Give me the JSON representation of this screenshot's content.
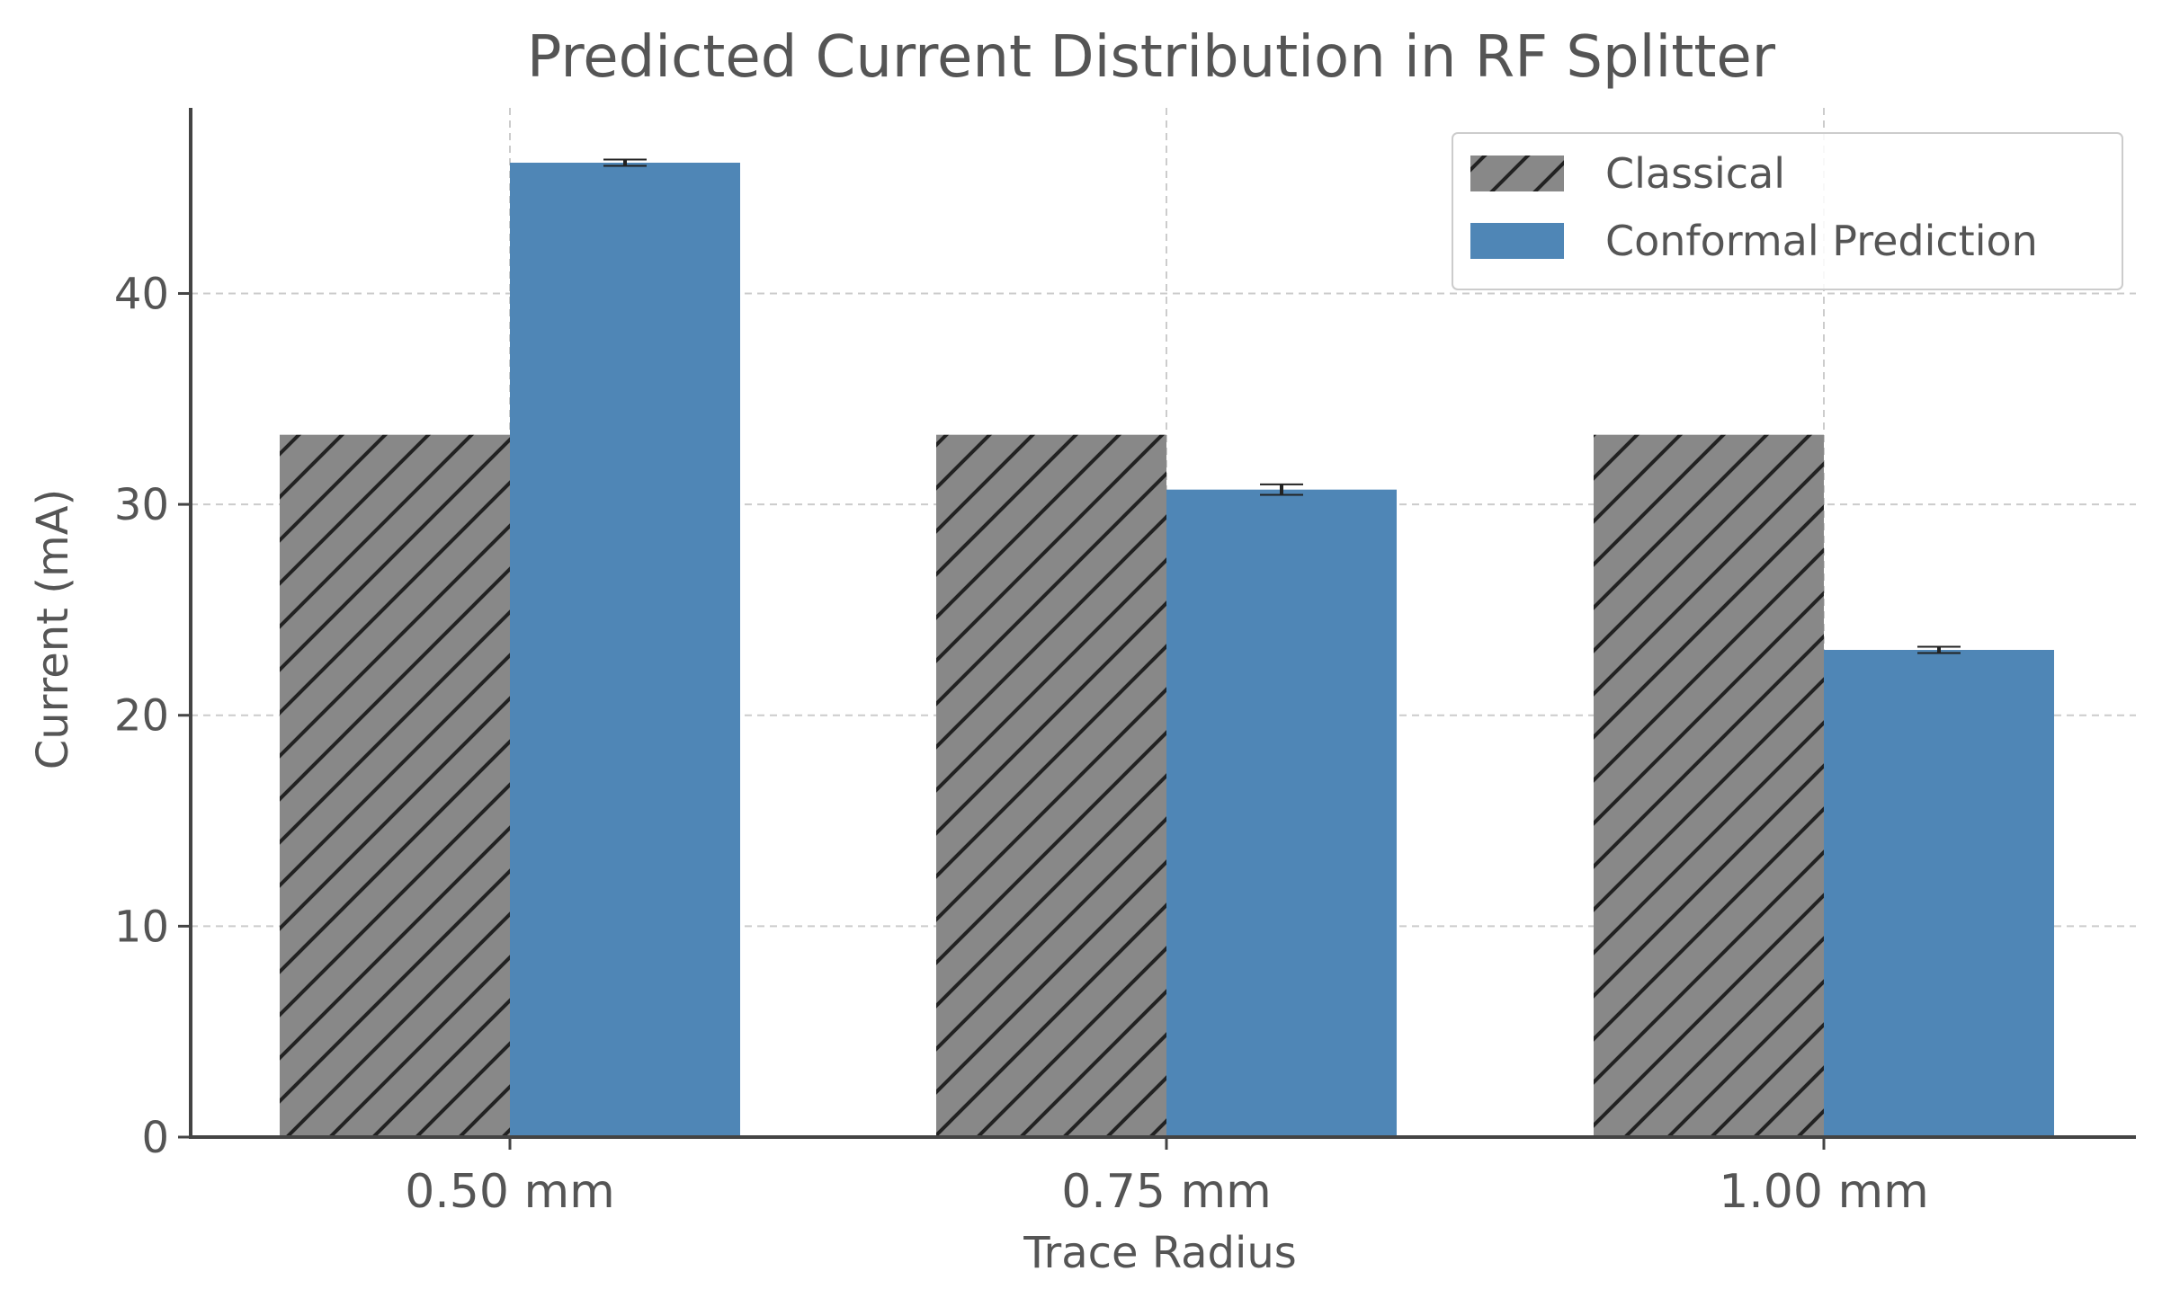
{
  "chart_data": {
    "type": "bar",
    "title": "Predicted Current Distribution in RF Splitter",
    "xlabel": "Trace Radius",
    "ylabel": "Current (mA)",
    "categories": [
      "0.50 mm",
      "0.75 mm",
      "1.00 mm"
    ],
    "ylim": [
      0,
      48.8
    ],
    "yticks": [
      0,
      10,
      20,
      30,
      40
    ],
    "grid": true,
    "legend_position": "top-right",
    "series": [
      {
        "name": "Classical",
        "values": [
          33.3,
          33.3,
          33.3
        ],
        "errors": null,
        "color": "#888888",
        "hatch": "diagonal"
      },
      {
        "name": "Conformal Prediction",
        "values": [
          46.2,
          30.7,
          23.1
        ],
        "errors": [
          0.15,
          0.25,
          0.15
        ],
        "color": "#4f86b6",
        "hatch": null
      }
    ]
  }
}
